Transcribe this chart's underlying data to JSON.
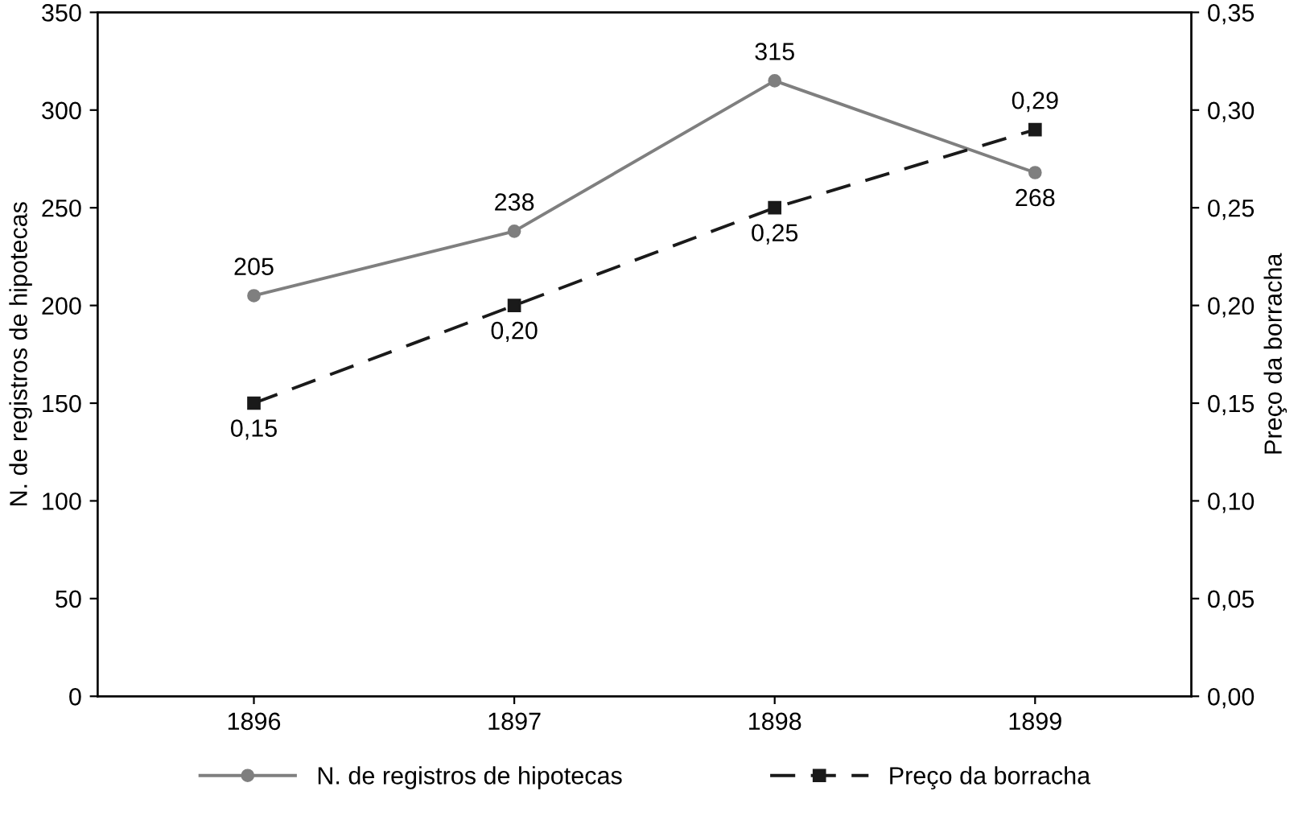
{
  "chart_data": {
    "type": "line",
    "categories": [
      "1896",
      "1897",
      "1898",
      "1899"
    ],
    "ylabel": "N. de registros de hipotecas",
    "y2label": "Preço da borracha",
    "ylim": [
      0,
      350
    ],
    "yticks": [
      0,
      50,
      100,
      150,
      200,
      250,
      300,
      350
    ],
    "y2lim": [
      0,
      0.35
    ],
    "y2ticks": [
      {
        "value": 0,
        "label": "0,00"
      },
      {
        "value": 0.05,
        "label": "0,05"
      },
      {
        "value": 0.1,
        "label": "0,10"
      },
      {
        "value": 0.15,
        "label": "0,15"
      },
      {
        "value": 0.2,
        "label": "0,20"
      },
      {
        "value": 0.25,
        "label": "0,25"
      },
      {
        "value": 0.3,
        "label": "0,30"
      },
      {
        "value": 0.35,
        "label": "0,35"
      }
    ],
    "series": [
      {
        "name": "N. de registros de hipotecas",
        "color": "#7f7f7f",
        "values": [
          205,
          238,
          315,
          268
        ],
        "value_labels": [
          "205",
          "238",
          "315",
          "268"
        ],
        "marker": "circle",
        "line_style": "solid"
      },
      {
        "name": "Preço da borracha",
        "color": "#1a1a1a",
        "values": [
          0.15,
          0.2,
          0.25,
          0.29
        ],
        "value_labels": [
          "0,15",
          "0,20",
          "0,25",
          "0,29"
        ],
        "marker": "square",
        "line_style": "dashed",
        "axis": "y2"
      }
    ],
    "legend": "bottom",
    "grid": false
  }
}
